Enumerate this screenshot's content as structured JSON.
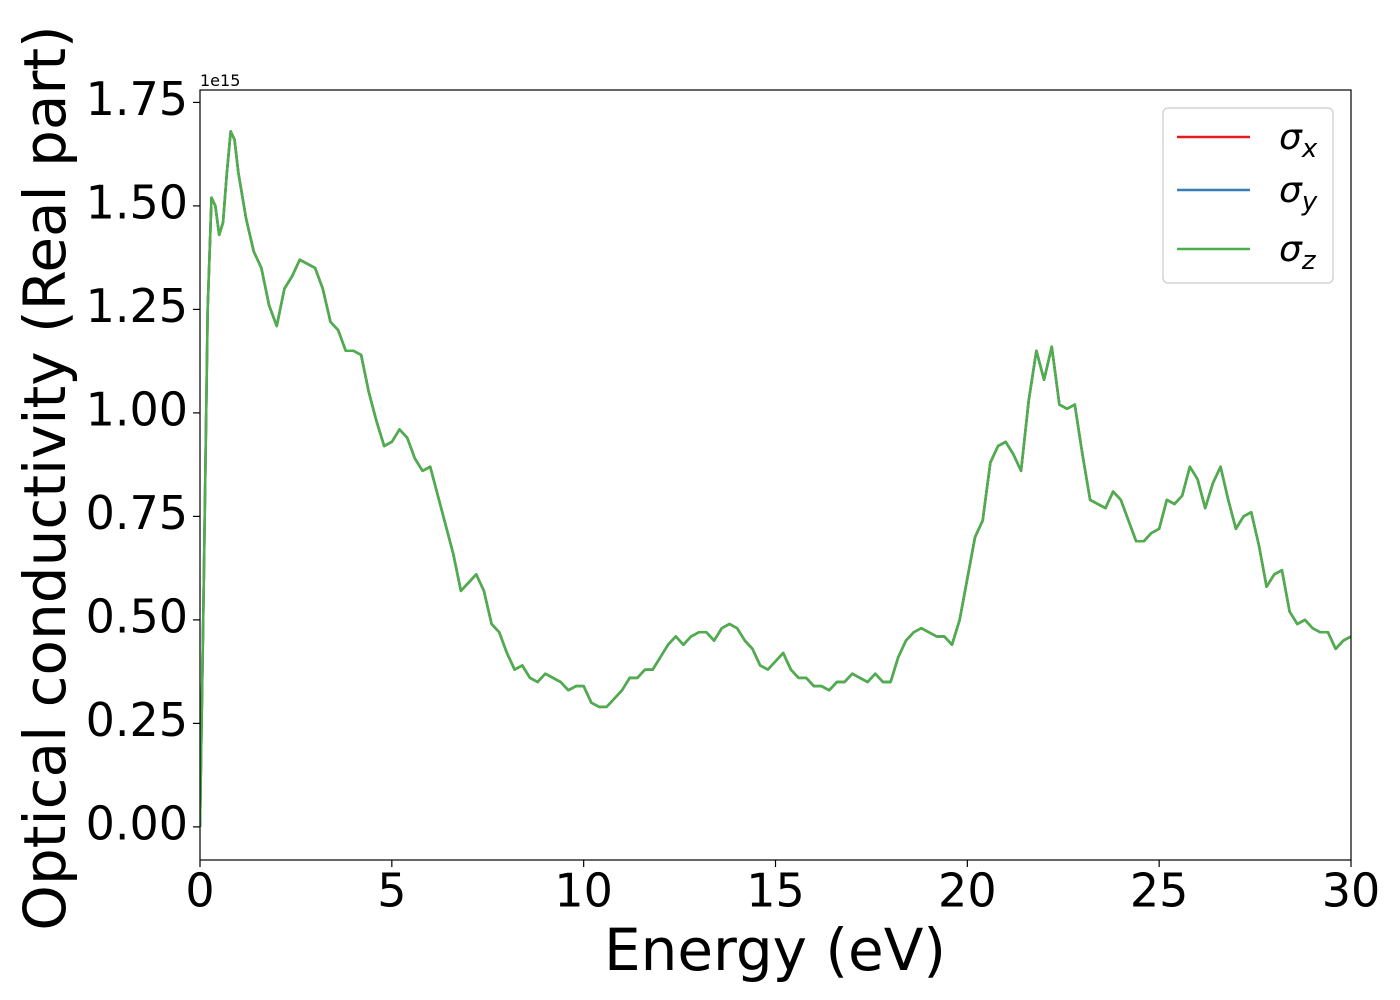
{
  "chart_data": {
    "type": "line",
    "xlabel": "Energy (eV)",
    "ylabel": "Optical conductivity (Real part)",
    "y_offset_label": "1e15",
    "xlim": [
      0,
      30
    ],
    "ylim": [
      -0.08,
      1.78
    ],
    "xticks": [
      0,
      5,
      10,
      15,
      20,
      25,
      30
    ],
    "yticks": [
      {
        "value": 0,
        "label": "0.00"
      },
      0.25,
      {
        "value": 0.5,
        "label": "0.50"
      },
      0.75,
      {
        "value": 1,
        "label": "1.00"
      },
      1.25,
      {
        "value": 1.5,
        "label": "1.50"
      },
      1.75
    ],
    "legend": "upper right",
    "x": [
      0,
      0.1,
      0.2,
      0.3,
      0.4,
      0.5,
      0.6,
      0.7,
      0.8,
      0.9,
      1,
      1.2,
      1.4,
      1.6,
      1.8,
      2,
      2.2,
      2.4,
      2.6,
      2.8,
      3,
      3.2,
      3.4,
      3.6,
      3.8,
      4,
      4.2,
      4.4,
      4.6,
      4.8,
      5,
      5.2,
      5.4,
      5.6,
      5.8,
      6,
      6.2,
      6.4,
      6.6,
      6.8,
      7,
      7.2,
      7.4,
      7.6,
      7.8,
      8,
      8.2,
      8.4,
      8.6,
      8.8,
      9,
      9.2,
      9.4,
      9.6,
      9.8,
      10,
      10.2,
      10.4,
      10.6,
      10.8,
      11,
      11.2,
      11.4,
      11.6,
      11.8,
      12,
      12.2,
      12.4,
      12.6,
      12.8,
      13,
      13.2,
      13.4,
      13.6,
      13.8,
      14,
      14.2,
      14.4,
      14.6,
      14.8,
      15,
      15.2,
      15.4,
      15.6,
      15.8,
      16,
      16.2,
      16.4,
      16.6,
      16.8,
      17,
      17.2,
      17.4,
      17.6,
      17.8,
      18,
      18.2,
      18.4,
      18.6,
      18.8,
      19,
      19.2,
      19.4,
      19.6,
      19.8,
      20,
      20.2,
      20.4,
      20.6,
      20.8,
      21,
      21.2,
      21.4,
      21.6,
      21.8,
      22,
      22.2,
      22.4,
      22.6,
      22.8,
      23,
      23.2,
      23.4,
      23.6,
      23.8,
      24,
      24.2,
      24.4,
      24.6,
      24.8,
      25,
      25.2,
      25.4,
      25.6,
      25.8,
      26,
      26.2,
      26.4,
      26.6,
      26.8,
      27,
      27.2,
      27.4,
      27.6,
      27.8,
      28,
      28.2,
      28.4,
      28.6,
      28.8,
      29,
      29.2,
      29.4,
      29.6,
      29.8,
      30
    ],
    "series": [
      {
        "name": "σx",
        "color": "#e41a1c",
        "values": [
          0,
          0.6,
          1.25,
          1.52,
          1.5,
          1.43,
          1.46,
          1.58,
          1.68,
          1.66,
          1.58,
          1.47,
          1.39,
          1.35,
          1.26,
          1.21,
          1.3,
          1.33,
          1.37,
          1.36,
          1.35,
          1.3,
          1.22,
          1.2,
          1.15,
          1.15,
          1.14,
          1.05,
          0.98,
          0.92,
          0.93,
          0.96,
          0.94,
          0.89,
          0.86,
          0.87,
          0.8,
          0.73,
          0.66,
          0.57,
          0.59,
          0.61,
          0.57,
          0.49,
          0.47,
          0.42,
          0.38,
          0.39,
          0.36,
          0.35,
          0.37,
          0.36,
          0.35,
          0.33,
          0.34,
          0.34,
          0.3,
          0.29,
          0.29,
          0.31,
          0.33,
          0.36,
          0.36,
          0.38,
          0.38,
          0.41,
          0.44,
          0.46,
          0.44,
          0.46,
          0.47,
          0.47,
          0.45,
          0.48,
          0.49,
          0.48,
          0.45,
          0.43,
          0.39,
          0.38,
          0.4,
          0.42,
          0.38,
          0.36,
          0.36,
          0.34,
          0.34,
          0.33,
          0.35,
          0.35,
          0.37,
          0.36,
          0.35,
          0.37,
          0.35,
          0.35,
          0.41,
          0.45,
          0.47,
          0.48,
          0.47,
          0.46,
          0.46,
          0.44,
          0.5,
          0.6,
          0.7,
          0.74,
          0.88,
          0.92,
          0.93,
          0.9,
          0.86,
          1.03,
          1.15,
          1.08,
          1.16,
          1.02,
          1.01,
          1.02,
          0.9,
          0.79,
          0.78,
          0.77,
          0.81,
          0.79,
          0.74,
          0.69,
          0.69,
          0.71,
          0.72,
          0.79,
          0.78,
          0.8,
          0.87,
          0.84,
          0.77,
          0.83,
          0.87,
          0.79,
          0.72,
          0.75,
          0.76,
          0.68,
          0.58,
          0.61,
          0.62,
          0.52,
          0.49,
          0.5,
          0.48,
          0.47,
          0.47,
          0.43,
          0.45,
          0.46
        ]
      },
      {
        "name": "σy",
        "color": "#377eb8",
        "values": [
          0,
          0.6,
          1.25,
          1.52,
          1.5,
          1.43,
          1.46,
          1.58,
          1.68,
          1.66,
          1.58,
          1.47,
          1.39,
          1.35,
          1.26,
          1.21,
          1.3,
          1.33,
          1.37,
          1.36,
          1.35,
          1.3,
          1.22,
          1.2,
          1.15,
          1.15,
          1.14,
          1.05,
          0.98,
          0.92,
          0.93,
          0.96,
          0.94,
          0.89,
          0.86,
          0.87,
          0.8,
          0.73,
          0.66,
          0.57,
          0.59,
          0.61,
          0.57,
          0.49,
          0.47,
          0.42,
          0.38,
          0.39,
          0.36,
          0.35,
          0.37,
          0.36,
          0.35,
          0.33,
          0.34,
          0.34,
          0.3,
          0.29,
          0.29,
          0.31,
          0.33,
          0.36,
          0.36,
          0.38,
          0.38,
          0.41,
          0.44,
          0.46,
          0.44,
          0.46,
          0.47,
          0.47,
          0.45,
          0.48,
          0.49,
          0.48,
          0.45,
          0.43,
          0.39,
          0.38,
          0.4,
          0.42,
          0.38,
          0.36,
          0.36,
          0.34,
          0.34,
          0.33,
          0.35,
          0.35,
          0.37,
          0.36,
          0.35,
          0.37,
          0.35,
          0.35,
          0.41,
          0.45,
          0.47,
          0.48,
          0.47,
          0.46,
          0.46,
          0.44,
          0.5,
          0.6,
          0.7,
          0.74,
          0.88,
          0.92,
          0.93,
          0.9,
          0.86,
          1.03,
          1.15,
          1.08,
          1.16,
          1.02,
          1.01,
          1.02,
          0.9,
          0.79,
          0.78,
          0.77,
          0.81,
          0.79,
          0.74,
          0.69,
          0.69,
          0.71,
          0.72,
          0.79,
          0.78,
          0.8,
          0.87,
          0.84,
          0.77,
          0.83,
          0.87,
          0.79,
          0.72,
          0.75,
          0.76,
          0.68,
          0.58,
          0.61,
          0.62,
          0.52,
          0.49,
          0.5,
          0.48,
          0.47,
          0.47,
          0.43,
          0.45,
          0.46
        ]
      },
      {
        "name": "σz",
        "color": "#4daf4a",
        "values": [
          0,
          0.6,
          1.25,
          1.52,
          1.5,
          1.43,
          1.46,
          1.58,
          1.68,
          1.66,
          1.58,
          1.47,
          1.39,
          1.35,
          1.26,
          1.21,
          1.3,
          1.33,
          1.37,
          1.36,
          1.35,
          1.3,
          1.22,
          1.2,
          1.15,
          1.15,
          1.14,
          1.05,
          0.98,
          0.92,
          0.93,
          0.96,
          0.94,
          0.89,
          0.86,
          0.87,
          0.8,
          0.73,
          0.66,
          0.57,
          0.59,
          0.61,
          0.57,
          0.49,
          0.47,
          0.42,
          0.38,
          0.39,
          0.36,
          0.35,
          0.37,
          0.36,
          0.35,
          0.33,
          0.34,
          0.34,
          0.3,
          0.29,
          0.29,
          0.31,
          0.33,
          0.36,
          0.36,
          0.38,
          0.38,
          0.41,
          0.44,
          0.46,
          0.44,
          0.46,
          0.47,
          0.47,
          0.45,
          0.48,
          0.49,
          0.48,
          0.45,
          0.43,
          0.39,
          0.38,
          0.4,
          0.42,
          0.38,
          0.36,
          0.36,
          0.34,
          0.34,
          0.33,
          0.35,
          0.35,
          0.37,
          0.36,
          0.35,
          0.37,
          0.35,
          0.35,
          0.41,
          0.45,
          0.47,
          0.48,
          0.47,
          0.46,
          0.46,
          0.44,
          0.5,
          0.6,
          0.7,
          0.74,
          0.88,
          0.92,
          0.93,
          0.9,
          0.86,
          1.03,
          1.15,
          1.08,
          1.16,
          1.02,
          1.01,
          1.02,
          0.9,
          0.79,
          0.78,
          0.77,
          0.81,
          0.79,
          0.74,
          0.69,
          0.69,
          0.71,
          0.72,
          0.79,
          0.78,
          0.8,
          0.87,
          0.84,
          0.77,
          0.83,
          0.87,
          0.79,
          0.72,
          0.75,
          0.76,
          0.68,
          0.58,
          0.61,
          0.62,
          0.52,
          0.49,
          0.5,
          0.48,
          0.47,
          0.47,
          0.43,
          0.45,
          0.46
        ]
      }
    ]
  }
}
